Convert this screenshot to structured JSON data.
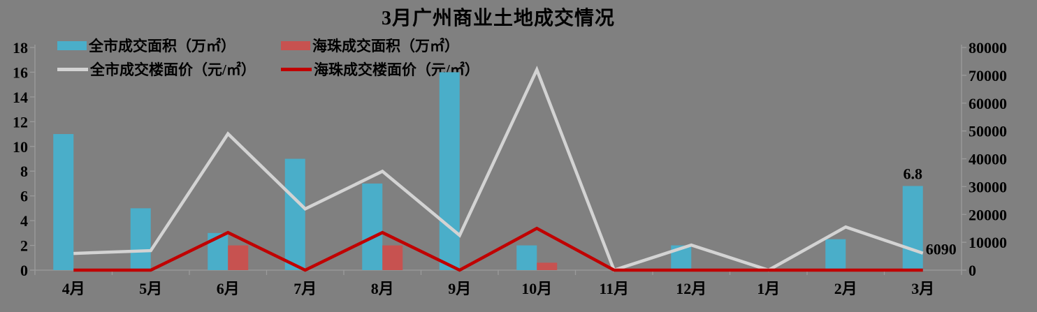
{
  "title": "3月广州商业土地成交情况",
  "colors": {
    "background": "#808080",
    "bar_citywide": "#4AAEC9",
    "bar_haizhu": "#C75250",
    "line_citywide": "#D3D3D3",
    "line_haizhu": "#C00000",
    "axis": "#9B9B9B",
    "text": "#000000"
  },
  "chart_data": {
    "type": "bar+line combo, dual axis",
    "title": "3月广州商业土地成交情况",
    "categories": [
      "4月",
      "5月",
      "6月",
      "7月",
      "8月",
      "9月",
      "10月",
      "11月",
      "12月",
      "1月",
      "2月",
      "3月"
    ],
    "series": [
      {
        "name": "全市成交面积（万㎡）",
        "type": "bar",
        "axis": "left",
        "color_key": "bar_citywide",
        "values": [
          11,
          5,
          3,
          9,
          7,
          16,
          2,
          0,
          2,
          0,
          2.5,
          6.8
        ]
      },
      {
        "name": "海珠成交面积（万㎡）",
        "type": "bar",
        "axis": "left",
        "color_key": "bar_haizhu",
        "values": [
          0,
          0,
          2,
          0,
          2,
          0,
          0.6,
          0,
          0,
          0,
          0,
          0
        ]
      },
      {
        "name": "全市成交楼面价（元/㎡）",
        "type": "line",
        "axis": "right",
        "color_key": "line_citywide",
        "values": [
          6000,
          7000,
          49000,
          22000,
          35500,
          12500,
          72000,
          0,
          9000,
          0,
          15500,
          6090
        ]
      },
      {
        "name": "海珠成交楼面价（元/㎡）",
        "type": "line",
        "axis": "right",
        "color_key": "line_haizhu",
        "values": [
          0,
          0,
          13500,
          0,
          13500,
          0,
          15000,
          0,
          0,
          0,
          0,
          0
        ]
      }
    ],
    "left_axis": {
      "min": 0,
      "max": 18,
      "step": 2,
      "ticks": [
        "0",
        "2",
        "4",
        "6",
        "8",
        "10",
        "12",
        "14",
        "16",
        "18"
      ]
    },
    "right_axis": {
      "min": 0,
      "max": 80000,
      "step": 10000,
      "ticks": [
        "0",
        "10000",
        "20000",
        "30000",
        "40000",
        "50000",
        "60000",
        "70000",
        "80000"
      ]
    },
    "annotations": [
      {
        "text": "6.8",
        "attach": "bar",
        "series": 0,
        "index": 11
      },
      {
        "text": "6090",
        "attach": "line",
        "series": 2,
        "index": 11
      }
    ],
    "grid": false,
    "legend_position": "top-left"
  }
}
